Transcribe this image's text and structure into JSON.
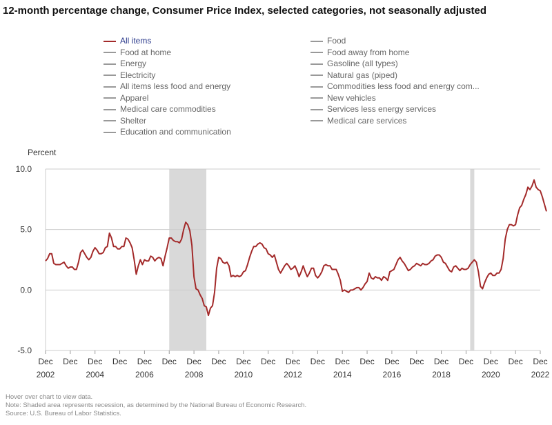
{
  "title": "12-month percentage change, Consumer Price Index, selected categories, not seasonally adjusted",
  "legend": [
    {
      "label": "All items",
      "active": true
    },
    {
      "label": "Food",
      "active": false
    },
    {
      "label": "Food at home",
      "active": false
    },
    {
      "label": "Food away from home",
      "active": false
    },
    {
      "label": "Energy",
      "active": false
    },
    {
      "label": "Gasoline (all types)",
      "active": false
    },
    {
      "label": "Electricity",
      "active": false
    },
    {
      "label": "Natural gas (piped)",
      "active": false
    },
    {
      "label": "All items less food and energy",
      "active": false
    },
    {
      "label": "Commodities less food and energy com...",
      "active": false
    },
    {
      "label": "Apparel",
      "active": false
    },
    {
      "label": "New vehicles",
      "active": false
    },
    {
      "label": "Medical care commodities",
      "active": false
    },
    {
      "label": "Services less energy services",
      "active": false
    },
    {
      "label": "Shelter",
      "active": false
    },
    {
      "label": "Medical care services",
      "active": false
    },
    {
      "label": "Education and communication",
      "active": false
    }
  ],
  "footnotes": [
    "Hover over chart to view data.",
    "Note: Shaded area represents recession, as determined by the National Bureau of Economic Research.",
    "Source: U.S. Bureau of Labor Statistics."
  ],
  "colors": {
    "series": "#a32a2a",
    "recession": "#d9d9d9",
    "grid": "#cccccc",
    "active_legend_text": "#2b3a8c"
  },
  "chart_data": {
    "type": "line",
    "title": "12-month percentage change, Consumer Price Index, selected categories, not seasonally adjusted",
    "ylabel": "Percent",
    "xlabel": "",
    "ylim": [
      -5.0,
      10.0
    ],
    "yticks": [
      {
        "value": 10.0,
        "label": "10.0"
      },
      {
        "value": 5.0,
        "label": "5.0"
      },
      {
        "value": 0.0,
        "label": "0.0"
      },
      {
        "value": -5.0,
        "label": "-5.0"
      }
    ],
    "xticks": [
      {
        "month": 0,
        "label1": "Dec",
        "label2": "2002"
      },
      {
        "month": 12,
        "label1": "Dec",
        "label2": ""
      },
      {
        "month": 24,
        "label1": "Dec",
        "label2": "2004"
      },
      {
        "month": 36,
        "label1": "Dec",
        "label2": ""
      },
      {
        "month": 48,
        "label1": "Dec",
        "label2": "2006"
      },
      {
        "month": 60,
        "label1": "Dec",
        "label2": ""
      },
      {
        "month": 72,
        "label1": "Dec",
        "label2": "2008"
      },
      {
        "month": 84,
        "label1": "Dec",
        "label2": ""
      },
      {
        "month": 96,
        "label1": "Dec",
        "label2": "2010"
      },
      {
        "month": 108,
        "label1": "Dec",
        "label2": ""
      },
      {
        "month": 120,
        "label1": "Dec",
        "label2": "2012"
      },
      {
        "month": 132,
        "label1": "Dec",
        "label2": ""
      },
      {
        "month": 144,
        "label1": "Dec",
        "label2": "2014"
      },
      {
        "month": 156,
        "label1": "Dec",
        "label2": ""
      },
      {
        "month": 168,
        "label1": "Dec",
        "label2": "2016"
      },
      {
        "month": 180,
        "label1": "Dec",
        "label2": ""
      },
      {
        "month": 192,
        "label1": "Dec",
        "label2": "2018"
      },
      {
        "month": 204,
        "label1": "Dec",
        "label2": ""
      },
      {
        "month": 216,
        "label1": "Dec",
        "label2": "2020"
      },
      {
        "month": 228,
        "label1": "Dec",
        "label2": ""
      },
      {
        "month": 240,
        "label1": "Dec",
        "label2": "2022"
      }
    ],
    "x_start": "Dec 2002",
    "x_end": "Dec 2022",
    "x_unit": "months since Dec 2002",
    "recessions": [
      {
        "start_month": 60,
        "end_month": 78,
        "label": "Dec 2007 - Jun 2009"
      },
      {
        "start_month": 206,
        "end_month": 208,
        "label": "Feb 2020 - Apr 2020"
      }
    ],
    "grid": true,
    "legend_position": "top",
    "series": [
      {
        "name": "All items",
        "start": "Dec 2002",
        "frequency": "monthly",
        "values": [
          2.4,
          2.6,
          3.0,
          3.0,
          2.2,
          2.1,
          2.1,
          2.1,
          2.2,
          2.3,
          2.0,
          1.8,
          1.9,
          1.9,
          1.7,
          1.7,
          2.3,
          3.1,
          3.3,
          3.0,
          2.7,
          2.5,
          2.7,
          3.2,
          3.5,
          3.3,
          3.0,
          3.0,
          3.1,
          3.5,
          3.6,
          4.7,
          4.3,
          3.6,
          3.6,
          3.4,
          3.4,
          3.6,
          3.6,
          4.3,
          4.2,
          3.9,
          3.5,
          2.5,
          1.3,
          2.0,
          2.5,
          2.1,
          2.5,
          2.4,
          2.4,
          2.8,
          2.7,
          2.4,
          2.6,
          2.7,
          2.6,
          2.0,
          2.8,
          3.5,
          4.3,
          4.3,
          4.1,
          4.0,
          4.0,
          3.9,
          4.2,
          5.0,
          5.6,
          5.4,
          4.9,
          3.7,
          1.1,
          0.1,
          0.0,
          -0.4,
          -0.7,
          -1.3,
          -1.4,
          -2.1,
          -1.5,
          -1.3,
          -0.2,
          1.8,
          2.7,
          2.6,
          2.3,
          2.2,
          2.3,
          2.0,
          1.1,
          1.2,
          1.1,
          1.2,
          1.1,
          1.2,
          1.5,
          1.6,
          2.1,
          2.7,
          3.2,
          3.6,
          3.6,
          3.8,
          3.9,
          3.8,
          3.5,
          3.4,
          3.0,
          2.9,
          2.7,
          2.9,
          2.3,
          1.7,
          1.4,
          1.7,
          2.0,
          2.2,
          2.0,
          1.7,
          1.8,
          2.0,
          1.6,
          1.1,
          1.5,
          2.0,
          1.5,
          1.1,
          1.4,
          1.8,
          1.8,
          1.2,
          1.0,
          1.2,
          1.5,
          2.0,
          2.1,
          2.0,
          2.0,
          1.7,
          1.7,
          1.7,
          1.3,
          0.8,
          -0.1,
          0.0,
          -0.1,
          -0.2,
          0.0,
          0.0,
          0.1,
          0.2,
          0.2,
          0.0,
          0.2,
          0.5,
          0.7,
          1.4,
          1.0,
          0.9,
          1.1,
          1.0,
          1.0,
          0.8,
          1.1,
          1.0,
          0.8,
          1.5,
          1.6,
          1.7,
          2.1,
          2.5,
          2.7,
          2.4,
          2.2,
          1.9,
          1.6,
          1.7,
          1.9,
          2.0,
          2.2,
          2.1,
          2.0,
          2.2,
          2.1,
          2.1,
          2.2,
          2.4,
          2.5,
          2.8,
          2.9,
          2.9,
          2.7,
          2.3,
          2.2,
          1.9,
          1.6,
          1.5,
          1.9,
          2.0,
          1.8,
          1.6,
          1.8,
          1.7,
          1.7,
          1.8,
          2.1,
          2.3,
          2.5,
          2.3,
          1.5,
          0.3,
          0.1,
          0.6,
          1.0,
          1.3,
          1.4,
          1.2,
          1.2,
          1.4,
          1.4,
          1.7,
          2.6,
          4.2,
          5.0,
          5.4,
          5.4,
          5.3,
          5.4,
          6.2,
          6.8,
          7.0,
          7.5,
          7.9,
          8.5,
          8.3,
          8.6,
          9.1,
          8.5,
          8.3,
          8.2,
          7.7,
          7.1,
          6.5
        ]
      }
    ]
  }
}
